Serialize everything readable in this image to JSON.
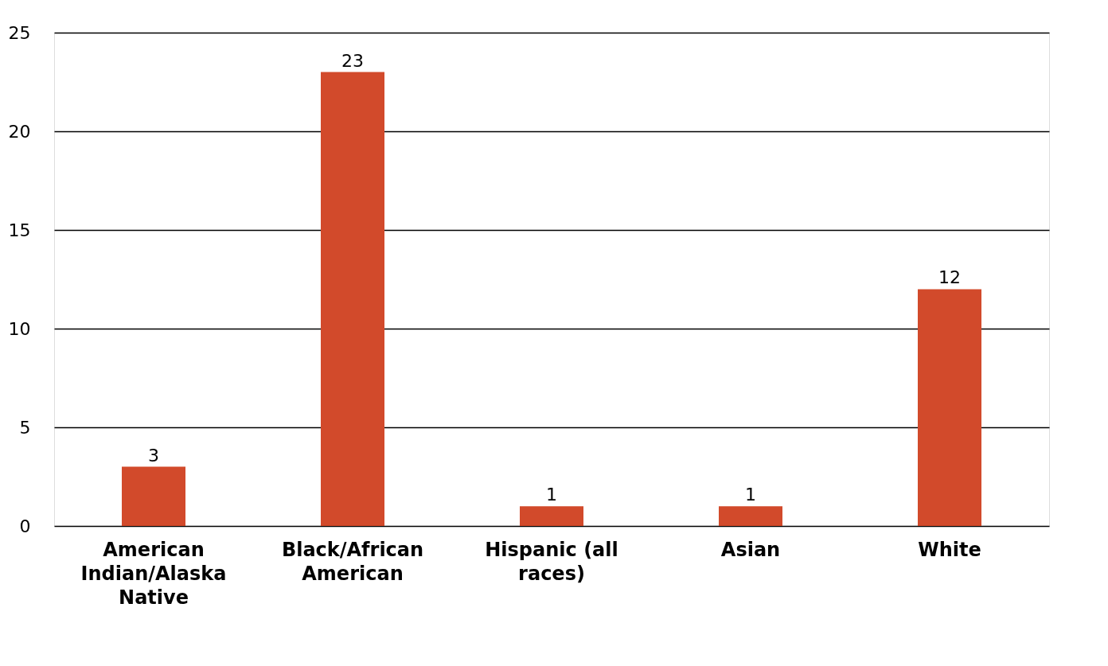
{
  "chart_data": {
    "type": "bar",
    "categories": [
      "American Indian/Alaska Native",
      "Black/African American",
      "Hispanic (all races)",
      "Asian",
      "White"
    ],
    "values": [
      3,
      23,
      1,
      1,
      12
    ],
    "color": "#d24a2b",
    "ylim": [
      0,
      25
    ],
    "yticks": [
      0,
      5,
      10,
      15,
      20,
      25
    ],
    "grid": "y",
    "data_labels": true
  }
}
